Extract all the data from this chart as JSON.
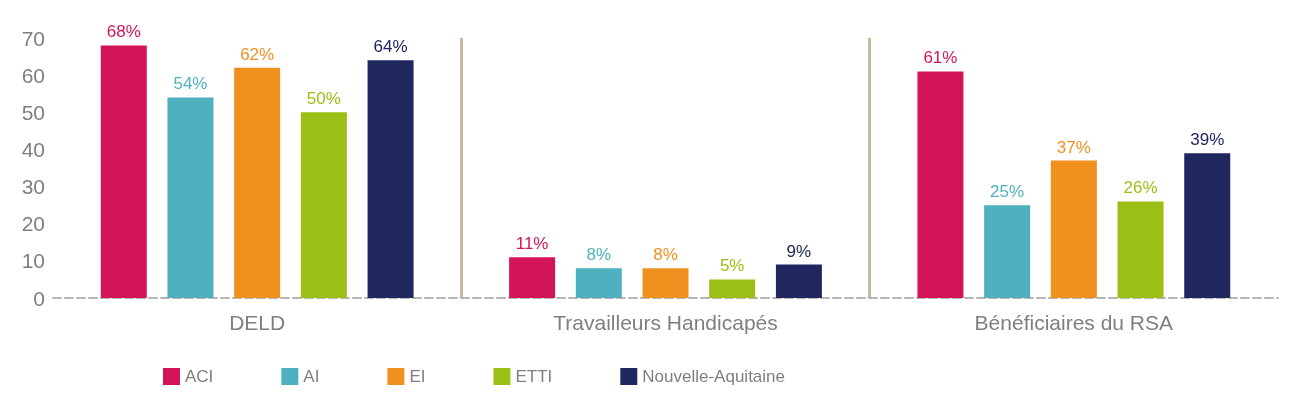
{
  "chart_data": {
    "type": "bar",
    "categories": [
      "DELD",
      "Travailleurs Handicapés",
      "Bénéficiaires du RSA"
    ],
    "series": [
      {
        "name": "ACI",
        "color": "#d4145a",
        "values": [
          68,
          11,
          61
        ],
        "value_labels": [
          "68%",
          "11%",
          "61%"
        ]
      },
      {
        "name": "AI",
        "color": "#4fb0bf",
        "values": [
          54,
          8,
          25
        ],
        "value_labels": [
          "54%",
          "8%",
          "25%"
        ]
      },
      {
        "name": "EI",
        "color": "#f0901e",
        "values": [
          62,
          8,
          37
        ],
        "value_labels": [
          "62%",
          "8%",
          "37%"
        ]
      },
      {
        "name": "ETTI",
        "color": "#9bbf14",
        "values": [
          50,
          5,
          26
        ],
        "value_labels": [
          "50%",
          "5%",
          "26%"
        ]
      },
      {
        "name": "Nouvelle-Aquitaine",
        "color": "#20265e",
        "values": [
          64,
          9,
          39
        ],
        "value_labels": [
          "64%",
          "9%",
          "39%"
        ]
      }
    ],
    "ylim": [
      0,
      70
    ],
    "yticks": [
      0,
      10,
      20,
      30,
      40,
      50,
      60,
      70
    ],
    "grid": "x",
    "legend": "bottom"
  }
}
